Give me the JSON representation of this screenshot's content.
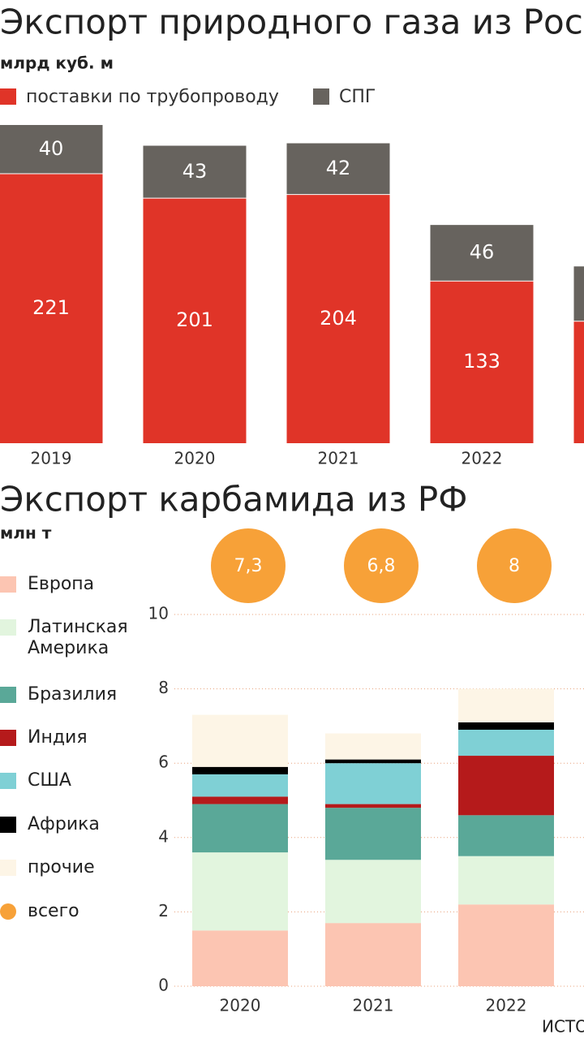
{
  "chart_data": [
    {
      "type": "stacked_bar",
      "title": "Экспорт природного газа из России",
      "subtitle": "млрд куб. м",
      "categories": [
        "2019",
        "2020",
        "2021",
        "2022",
        null
      ],
      "series": [
        {
          "name": "поставки по трубопроводу",
          "color": "#e03428",
          "values": [
            221,
            201,
            204,
            133,
            100
          ]
        },
        {
          "name": "СПГ",
          "color": "#67635e",
          "values": [
            40,
            43,
            42,
            46,
            45
          ]
        }
      ]
    },
    {
      "type": "stacked_bar",
      "title": "Экспорт карбамида из РФ",
      "subtitle": "млн т",
      "categories": [
        "2020",
        "2021",
        "2022"
      ],
      "series": [
        {
          "name": "Европа",
          "color": "#fcc5b2",
          "values": [
            1.5,
            1.7,
            2.2
          ]
        },
        {
          "name": "Латинская Америка",
          "color": "#e2f5de",
          "values": [
            2.1,
            1.7,
            1.3
          ]
        },
        {
          "name": "Бразилия",
          "color": "#5aa898",
          "values": [
            1.3,
            1.4,
            1.1
          ]
        },
        {
          "name": "Индия",
          "color": "#b51a1b",
          "values": [
            0.2,
            0.1,
            1.6
          ]
        },
        {
          "name": "США",
          "color": "#7fd0d5",
          "values": [
            0.6,
            1.1,
            0.7
          ]
        },
        {
          "name": "Африка",
          "color": "#000000",
          "values": [
            0.2,
            0.1,
            0.2
          ]
        },
        {
          "name": "прочие",
          "color": "#fdf5e6",
          "values": [
            1.4,
            0.7,
            0.9
          ]
        }
      ],
      "totals": {
        "name": "всего",
        "color": "#f7a138",
        "values": [
          7.3,
          6.8,
          8
        ],
        "value_labels": [
          "7,3",
          "6,8",
          "8"
        ]
      },
      "ylim": [
        0,
        10
      ],
      "yticks": [
        0,
        2,
        4,
        6,
        8,
        10
      ],
      "grid": true,
      "source": "ИСТО"
    }
  ]
}
